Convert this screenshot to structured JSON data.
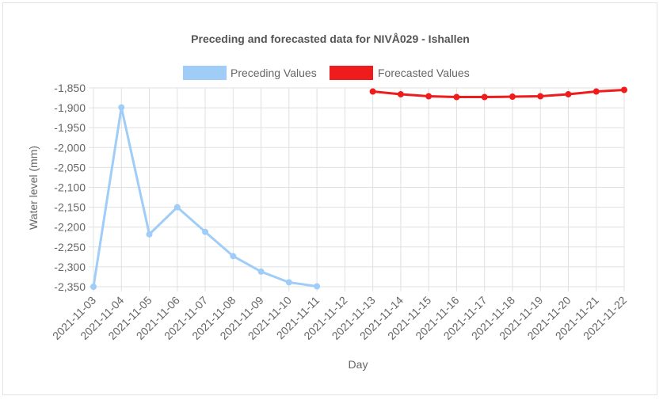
{
  "chart_data": {
    "type": "line",
    "title": "Preceding and forecasted data for NIVÅ029 - Ishallen",
    "xlabel": "Day",
    "ylabel": "Water level (mm)",
    "ylim": [
      -2350,
      -1850
    ],
    "yticks": [
      -1850,
      -1900,
      -1950,
      -2000,
      -2050,
      -2100,
      -2150,
      -2200,
      -2250,
      -2300,
      -2350
    ],
    "ytick_labels": [
      "-1,850",
      "-1,900",
      "-1,950",
      "-2,000",
      "-2,050",
      "-2,100",
      "-2,150",
      "-2,200",
      "-2,250",
      "-2,300",
      "-2,350"
    ],
    "grid": true,
    "legend_position": "top",
    "categories": [
      "2021-11-03",
      "2021-11-04",
      "2021-11-05",
      "2021-11-06",
      "2021-11-07",
      "2021-11-08",
      "2021-11-09",
      "2021-11-10",
      "2021-11-11",
      "2021-11-12",
      "2021-11-13",
      "2021-11-14",
      "2021-11-15",
      "2021-11-16",
      "2021-11-17",
      "2021-11-18",
      "2021-11-19",
      "2021-11-20",
      "2021-11-21",
      "2021-11-22"
    ],
    "series": [
      {
        "name": "Preceding Values",
        "color": "#9fcdf8",
        "values": [
          -2350,
          -1899,
          -2218,
          -2150,
          -2212,
          -2273,
          -2312,
          -2339,
          -2349,
          null,
          null,
          null,
          null,
          null,
          null,
          null,
          null,
          null,
          null,
          null
        ]
      },
      {
        "name": "Forecasted Values",
        "color": "#ee1c1c",
        "values": [
          null,
          null,
          null,
          null,
          null,
          null,
          null,
          null,
          null,
          null,
          -1859,
          -1866,
          -1871,
          -1873,
          -1873,
          -1872,
          -1871,
          -1866,
          -1859,
          -1855
        ]
      }
    ]
  }
}
